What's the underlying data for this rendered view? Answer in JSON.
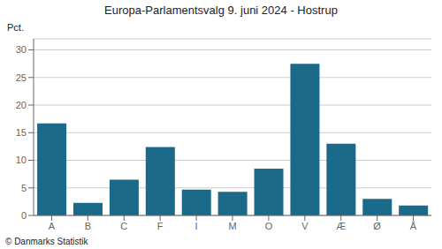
{
  "chart_data": {
    "type": "bar",
    "title": "Europa-Parlamentsvalg 9. juni 2024 - Hostrup",
    "categories": [
      "A",
      "B",
      "C",
      "F",
      "I",
      "M",
      "O",
      "V",
      "Æ",
      "Ø",
      "Å"
    ],
    "values": [
      16.7,
      2.3,
      6.5,
      12.4,
      4.7,
      4.3,
      8.5,
      27.5,
      13.0,
      3.0,
      1.8
    ],
    "color": "#1b6a8a",
    "ylim": [
      0,
      32
    ],
    "yticks": [
      0,
      5,
      10,
      15,
      20,
      25,
      30
    ],
    "grid": true,
    "ylabel": "Pct.",
    "annotations": [
      "© Danmarks Statistik"
    ]
  }
}
